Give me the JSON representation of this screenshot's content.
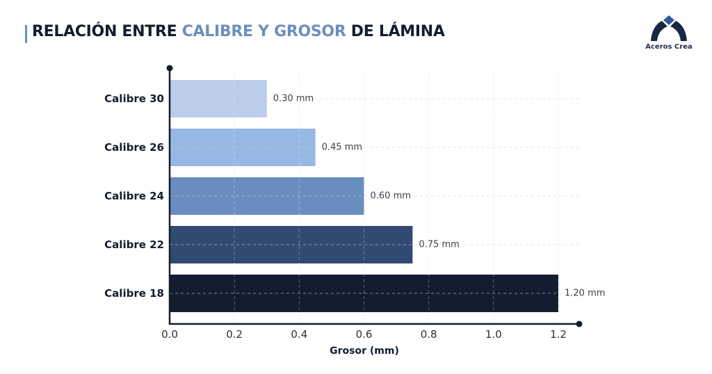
{
  "header": {
    "title_part1": "RELACIÓN ENTRE ",
    "title_accent": "CALIBRE Y GROSOR",
    "title_part2": " DE LÁMINA",
    "accent_color": "#6d8fbf"
  },
  "logo": {
    "icon": "arch-logo-icon",
    "text": "Aceros Crea"
  },
  "chart_data": {
    "type": "bar",
    "orientation": "horizontal",
    "title": "RELACIÓN ENTRE CALIBRE Y GROSOR DE LÁMINA",
    "xlabel": "Grosor (mm)",
    "ylabel": "",
    "categories": [
      "Calibre 30",
      "Calibre 26",
      "Calibre 24",
      "Calibre 22",
      "Calibre 18"
    ],
    "values": [
      0.3,
      0.45,
      0.6,
      0.75,
      1.2
    ],
    "value_labels": [
      "0.30 mm",
      "0.45 mm",
      "0.60 mm",
      "0.75 mm",
      "1.20 mm"
    ],
    "colors": [
      "#bccdeb",
      "#97b8e2",
      "#6a8dc0",
      "#324a72",
      "#131d30"
    ],
    "xlim": [
      0,
      1.2
    ],
    "xticks": [
      0.0,
      0.2,
      0.4,
      0.6,
      0.8,
      1.0,
      1.2
    ],
    "xtick_labels": [
      "0.0",
      "0.2",
      "0.4",
      "0.6",
      "0.8",
      "1.0",
      "1.2"
    ],
    "grid": true,
    "legend": "none"
  }
}
